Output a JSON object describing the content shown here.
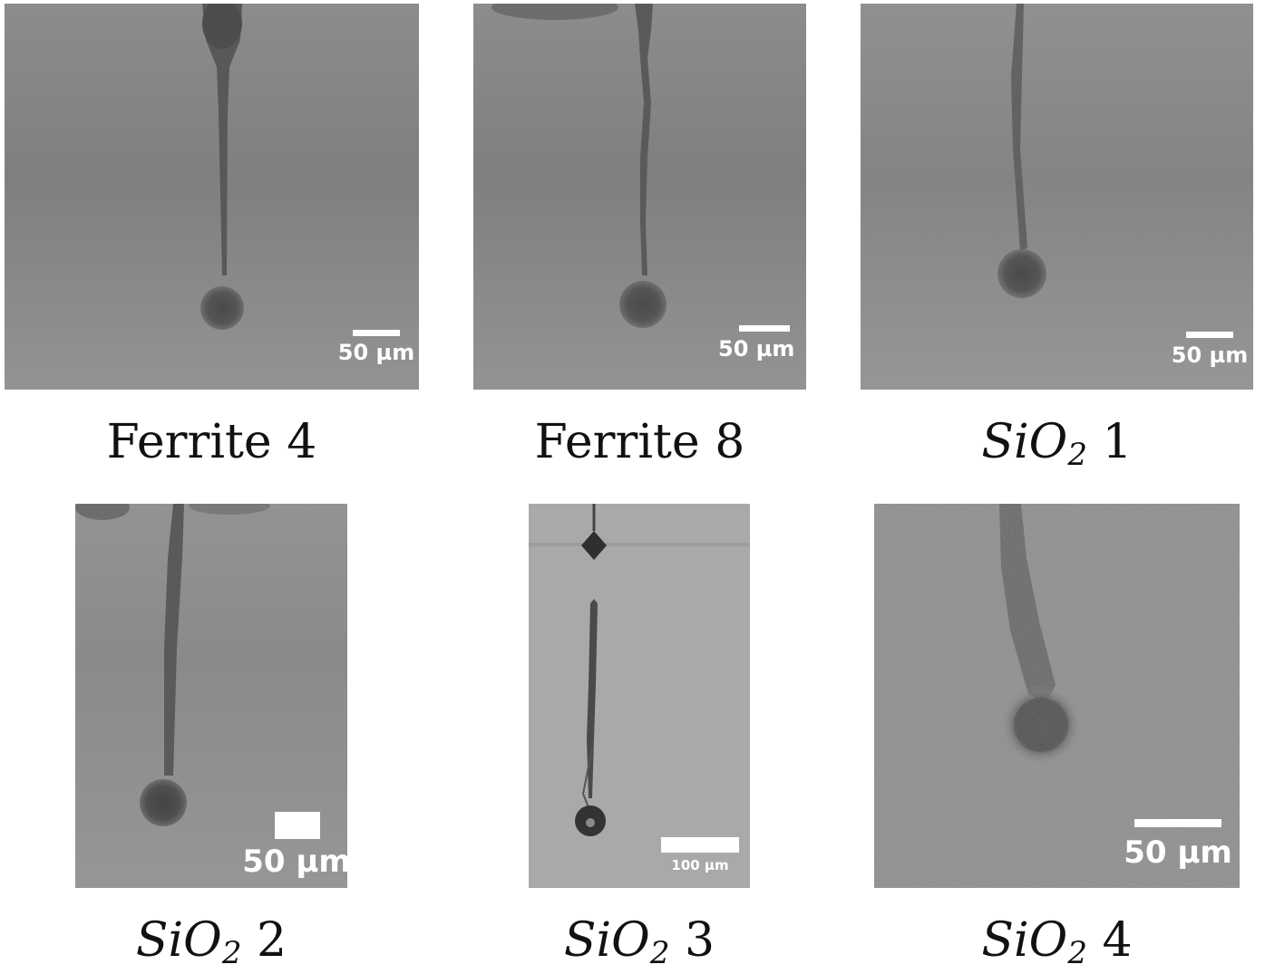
{
  "panels": [
    {
      "id": "ferrite-4",
      "caption": {
        "text": "Ferrite 4",
        "main": "",
        "sub": "",
        "suffix": ""
      },
      "scale_bar": "50 µm",
      "background": "#8a8a8a"
    },
    {
      "id": "ferrite-8",
      "caption": {
        "text": "Ferrite 8",
        "main": "",
        "sub": "",
        "suffix": ""
      },
      "scale_bar": "50  µm",
      "background": "#8a8a8a"
    },
    {
      "id": "sio2-1",
      "caption": {
        "text": "",
        "main": "SiO",
        "sub": "2",
        "suffix": " 1"
      },
      "scale_bar": "50 µm",
      "background": "#8d8d8d"
    },
    {
      "id": "sio2-2",
      "caption": {
        "text": "",
        "main": "SiO",
        "sub": "2",
        "suffix": " 2"
      },
      "scale_bar": "50 µm",
      "background": "#8f8f8f"
    },
    {
      "id": "sio2-3",
      "caption": {
        "text": "",
        "main": "SiO",
        "sub": "2",
        "suffix": " 3"
      },
      "scale_bar": "100 µm",
      "background": "#a6a6a6"
    },
    {
      "id": "sio2-4",
      "caption": {
        "text": "",
        "main": "SiO",
        "sub": "2",
        "suffix": " 4"
      },
      "scale_bar": "50 µm",
      "background": "#8c8c8c"
    }
  ]
}
